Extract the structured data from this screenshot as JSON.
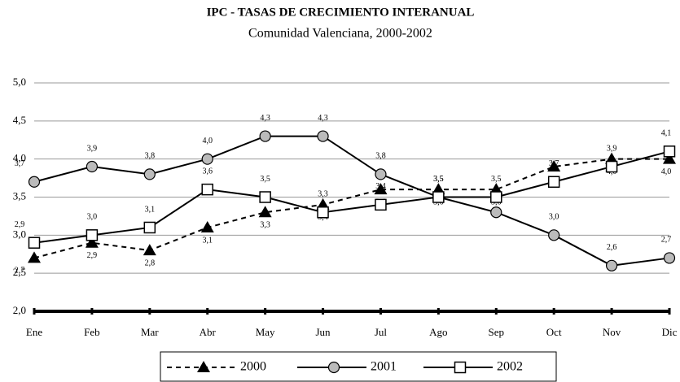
{
  "chart_data": {
    "type": "line",
    "title": "IPC - TASAS DE CRECIMIENTO INTERANUAL",
    "subtitle": "Comunidad Valenciana, 2000-2002",
    "categories": [
      "Ene",
      "Feb",
      "Mar",
      "Abr",
      "May",
      "Jun",
      "Jul",
      "Ago",
      "Sep",
      "Oct",
      "Nov",
      "Dic"
    ],
    "ylim": [
      2,
      5
    ],
    "yticks": [
      {
        "value": 2,
        "label": "2,0"
      },
      {
        "value": 2.5,
        "label": "2,5"
      },
      {
        "value": 3,
        "label": "3,0"
      },
      {
        "value": 3.5,
        "label": "3,5"
      },
      {
        "value": 4,
        "label": "4,0"
      },
      {
        "value": 4.5,
        "label": "4,5"
      },
      {
        "value": 5,
        "label": "5,0"
      }
    ],
    "grid": true,
    "legend": "bottom",
    "series": [
      {
        "name": "2000",
        "color": "#000000",
        "marker": "triangle",
        "dashed": true,
        "values": [
          2.7,
          2.9,
          2.8,
          3.1,
          3.3,
          3.4,
          3.6,
          3.6,
          3.6,
          3.9,
          4.0,
          4.0
        ],
        "value_labels": [
          "2,7",
          "2,9",
          "2,8",
          "3,1",
          "3,3",
          "3,4",
          "3,6",
          "3,6",
          "3,6",
          "3,9",
          "4,0",
          "4,0"
        ]
      },
      {
        "name": "2001",
        "color": "#000000",
        "marker": "circle",
        "dashed": false,
        "values": [
          3.7,
          3.9,
          3.8,
          4.0,
          4.3,
          4.3,
          3.8,
          3.5,
          3.3,
          3.0,
          2.6,
          2.7
        ],
        "value_labels": [
          "3,7",
          "3,9",
          "3,8",
          "4,0",
          "4,3",
          "4,3",
          "3,8",
          "3,5",
          "3,3",
          "3,0",
          "2,6",
          "2,7"
        ]
      },
      {
        "name": "2002",
        "color": "#000000",
        "marker": "square",
        "dashed": false,
        "values": [
          2.9,
          3.0,
          3.1,
          3.6,
          3.5,
          3.3,
          3.4,
          3.5,
          3.5,
          3.7,
          3.9,
          4.1
        ],
        "value_labels": [
          "2,9",
          "3,0",
          "3,1",
          "3,6",
          "3,5",
          "3,3",
          "3,4",
          "3,5",
          "3,5",
          "3,7",
          "3,9",
          "4,1"
        ]
      }
    ]
  }
}
